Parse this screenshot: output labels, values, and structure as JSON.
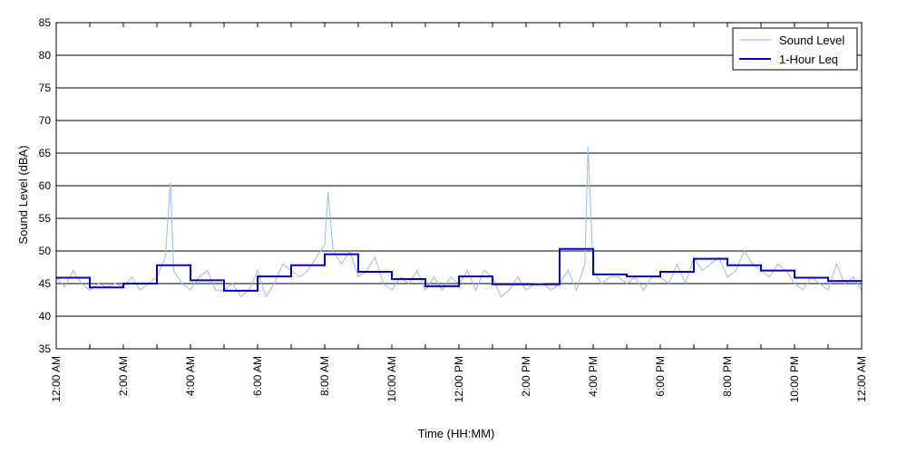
{
  "chart_data": {
    "type": "line",
    "title": "",
    "xlabel": "Time (HH:MM)",
    "ylabel": "Sound Level (dBA)",
    "ylim": [
      35,
      85
    ],
    "y_ticks": [
      35,
      40,
      45,
      50,
      55,
      60,
      65,
      70,
      75,
      80,
      85
    ],
    "xlim_hours": [
      0,
      24
    ],
    "x_tick_labels": [
      {
        "hour": 0,
        "label": "12:00 AM"
      },
      {
        "hour": 2,
        "label": "2:00 AM"
      },
      {
        "hour": 4,
        "label": "4:00 AM"
      },
      {
        "hour": 6,
        "label": "6:00 AM"
      },
      {
        "hour": 8,
        "label": "8:00 AM"
      },
      {
        "hour": 10,
        "label": "10:00 AM"
      },
      {
        "hour": 12,
        "label": "12:00 PM"
      },
      {
        "hour": 14,
        "label": "2:00 PM"
      },
      {
        "hour": 16,
        "label": "4:00 PM"
      },
      {
        "hour": 18,
        "label": "6:00 PM"
      },
      {
        "hour": 20,
        "label": "8:00 PM"
      },
      {
        "hour": 22,
        "label": "10:00 PM"
      },
      {
        "hour": 24,
        "label": "12:00 AM"
      }
    ],
    "grid": "horizontal",
    "legend_position": "top-right",
    "series": [
      {
        "name": "Sound Level",
        "color": "#9db8f0",
        "x_hours": [
          0.0,
          0.25,
          0.5,
          0.75,
          1.0,
          1.25,
          1.5,
          1.75,
          2.0,
          2.25,
          2.5,
          2.75,
          3.0,
          3.25,
          3.4,
          3.5,
          3.75,
          4.0,
          4.25,
          4.5,
          4.75,
          5.0,
          5.25,
          5.5,
          5.75,
          6.0,
          6.25,
          6.5,
          6.75,
          7.0,
          7.25,
          7.5,
          7.75,
          8.0,
          8.1,
          8.25,
          8.5,
          8.75,
          9.0,
          9.25,
          9.5,
          9.75,
          10.0,
          10.25,
          10.5,
          10.75,
          11.0,
          11.25,
          11.5,
          11.75,
          12.0,
          12.25,
          12.5,
          12.75,
          13.0,
          13.25,
          13.5,
          13.75,
          14.0,
          14.25,
          14.5,
          14.75,
          15.0,
          15.25,
          15.5,
          15.75,
          15.85,
          16.0,
          16.25,
          16.5,
          16.75,
          17.0,
          17.25,
          17.5,
          17.75,
          18.0,
          18.25,
          18.5,
          18.75,
          19.0,
          19.25,
          19.5,
          19.75,
          20.0,
          20.25,
          20.5,
          20.75,
          21.0,
          21.25,
          21.5,
          21.75,
          22.0,
          22.25,
          22.5,
          22.75,
          23.0,
          23.25,
          23.5,
          23.75,
          24.0
        ],
        "values": [
          46,
          44.5,
          47,
          45,
          44,
          45,
          44.5,
          45,
          44.5,
          46,
          44,
          45,
          46,
          49,
          60.5,
          47,
          45,
          44,
          46,
          47,
          44,
          44,
          45,
          43,
          44,
          47,
          43,
          45,
          48,
          47,
          46,
          47,
          49,
          51,
          59,
          50,
          48,
          50,
          46,
          47,
          49,
          45,
          44,
          46,
          45,
          47,
          44,
          46,
          44,
          46,
          45,
          47,
          44,
          47,
          46,
          43,
          44,
          46,
          44,
          45,
          45,
          44,
          45,
          47,
          44,
          48,
          66,
          47,
          45,
          46,
          46,
          45,
          46,
          44,
          46,
          46,
          45,
          48,
          45,
          49,
          47,
          48,
          49,
          46,
          47,
          50,
          48,
          47,
          46,
          48,
          47,
          45,
          44,
          46,
          45,
          44,
          48,
          45,
          46,
          44
        ]
      },
      {
        "name": "1-Hour Leq",
        "color": "#0000dd",
        "step_starts_hours": [
          0,
          1,
          2,
          3,
          4,
          5,
          6,
          7,
          8,
          9,
          10,
          11,
          12,
          13,
          14,
          15,
          16,
          17,
          18,
          19,
          20,
          21,
          22,
          23
        ],
        "values": [
          45.9,
          44.4,
          45.0,
          47.8,
          45.5,
          43.9,
          46.1,
          47.8,
          49.5,
          46.8,
          45.7,
          44.6,
          46.1,
          44.9,
          44.9,
          50.3,
          46.4,
          46.1,
          46.8,
          48.8,
          47.8,
          47.0,
          45.9,
          45.4
        ]
      }
    ]
  }
}
